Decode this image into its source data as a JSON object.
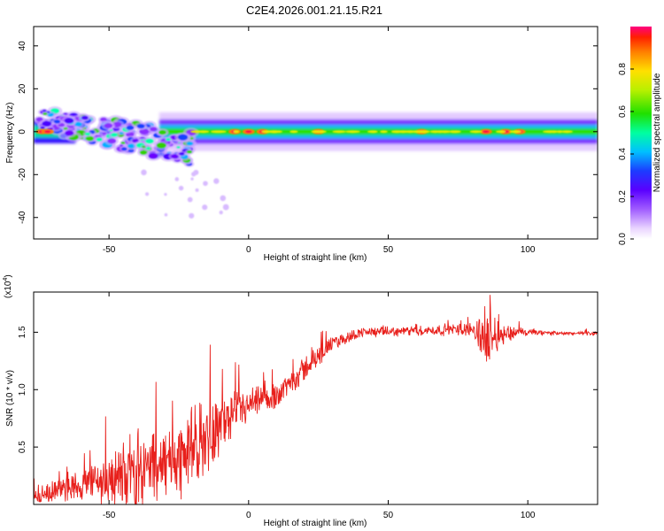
{
  "title": "C2E4.2026.001.21.15.R21",
  "chart_data": [
    {
      "type": "heatmap",
      "xlabel": "Height of straight line (km)",
      "ylabel": "Frequency (Hz)",
      "xlim": [
        -77,
        125
      ],
      "ylim": [
        -50,
        49
      ],
      "xticks": [
        -50,
        0,
        50,
        100
      ],
      "xtick_labels": [
        "-50",
        "0",
        "50",
        "100"
      ],
      "yticks": [
        -40,
        -20,
        0,
        20,
        40
      ],
      "ytick_labels": [
        "-40",
        "-20",
        "0",
        "20",
        "40"
      ],
      "colorbar": {
        "label": "Normalized spectral amplitude",
        "range": [
          0,
          1
        ],
        "ticks": [
          0.0,
          0.2,
          0.4,
          0.6,
          0.8
        ],
        "tick_labels": [
          "0.0",
          "0.2",
          "0.4",
          "0.6",
          "0.8"
        ]
      },
      "description_band": {
        "center_freq_hz": 0,
        "band_halfwidth_hz": 3,
        "start_km": -32,
        "end_km": 125
      }
    },
    {
      "type": "line",
      "xlabel": "Height of straight line (km)",
      "ylabel": "SNR (10 * v/v)",
      "multiplier_label": "(x10",
      "multiplier_exp": "4",
      "multiplier_close": ")",
      "xlim": [
        -77,
        125
      ],
      "ylim": [
        0,
        1.85
      ],
      "xticks": [
        -50,
        0,
        50,
        100
      ],
      "xtick_labels": [
        "-50",
        "0",
        "50",
        "100"
      ],
      "yticks": [
        0.5,
        1.0,
        1.5
      ],
      "ytick_labels": [
        "0.5",
        "1.0",
        "1.5"
      ],
      "color": "#e8201c",
      "envelope": [
        {
          "x": -77,
          "base": 0.06,
          "amp": 0.08
        },
        {
          "x": -60,
          "base": 0.17,
          "amp": 0.16
        },
        {
          "x": -45,
          "base": 0.25,
          "amp": 0.35
        },
        {
          "x": -40,
          "base": 0.3,
          "amp": 0.45
        },
        {
          "x": -30,
          "base": 0.35,
          "amp": 0.35
        },
        {
          "x": -20,
          "base": 0.48,
          "amp": 0.45
        },
        {
          "x": -10,
          "base": 0.7,
          "amp": 0.3
        },
        {
          "x": 0,
          "base": 0.85,
          "amp": 0.18
        },
        {
          "x": 10,
          "base": 0.95,
          "amp": 0.14
        },
        {
          "x": 20,
          "base": 1.18,
          "amp": 0.14
        },
        {
          "x": 30,
          "base": 1.4,
          "amp": 0.08
        },
        {
          "x": 40,
          "base": 1.5,
          "amp": 0.05
        },
        {
          "x": 60,
          "base": 1.51,
          "amp": 0.05
        },
        {
          "x": 80,
          "base": 1.53,
          "amp": 0.07
        },
        {
          "x": 84,
          "base": 1.45,
          "amp": 0.3
        },
        {
          "x": 90,
          "base": 1.48,
          "amp": 0.15
        },
        {
          "x": 96,
          "base": 1.5,
          "amp": 0.05
        },
        {
          "x": 110,
          "base": 1.49,
          "amp": 0.02
        },
        {
          "x": 125,
          "base": 1.49,
          "amp": 0.02
        }
      ]
    }
  ]
}
